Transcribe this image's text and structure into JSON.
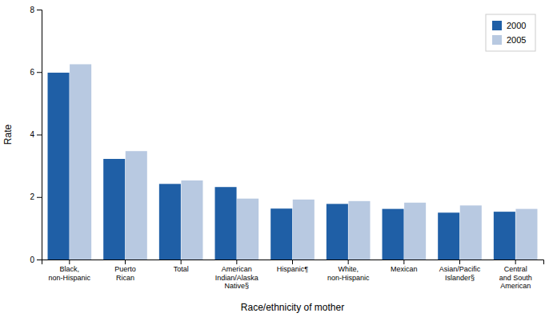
{
  "chart_data": {
    "type": "bar",
    "categories": [
      "Black,\nnon-Hispanic",
      "Puerto\nRican",
      "Total",
      "American\nIndian/Alaska\nNative§",
      "Hispanic¶",
      "White,\nnon-Hispanic",
      "Mexican",
      "Asian/Pacific\nIslander§",
      "Central\nand South\nAmerican"
    ],
    "series": [
      {
        "name": "2000",
        "color": "#1f5fa6",
        "values": [
          5.98,
          3.22,
          2.42,
          2.32,
          1.63,
          1.78,
          1.62,
          1.5,
          1.53
        ]
      },
      {
        "name": "2005",
        "color": "#b8c9e1",
        "values": [
          6.25,
          3.47,
          2.53,
          1.95,
          1.92,
          1.87,
          1.82,
          1.73,
          1.62
        ]
      }
    ],
    "xlabel": "Race/ethnicity of mother",
    "ylabel": "Rate",
    "ylim": [
      0,
      8
    ],
    "yticks": [
      0,
      2,
      4,
      6,
      8
    ],
    "grid": false,
    "legend": "upper right"
  }
}
